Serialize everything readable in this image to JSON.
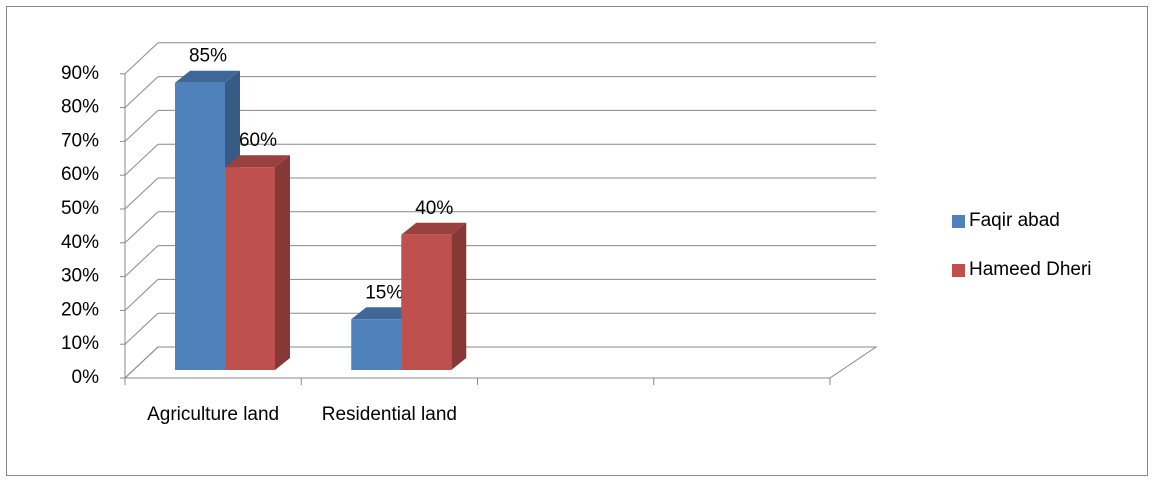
{
  "chart_data": {
    "type": "bar3d",
    "categories": [
      "Agriculture land",
      "Residential land",
      null,
      null
    ],
    "series": [
      {
        "name": "Faqir abad",
        "color": "#4f81bd",
        "values": [
          85,
          15,
          null,
          null
        ],
        "value_labels": [
          "85%",
          "15%",
          null,
          null
        ]
      },
      {
        "name": "Hameed Dheri",
        "color": "#c0504d",
        "values": [
          60,
          40,
          null,
          null
        ],
        "value_labels": [
          "60%",
          "40%",
          null,
          null
        ]
      }
    ],
    "ylim": [
      0,
      90
    ],
    "yticks": [
      {
        "value": 0,
        "label": "0%"
      },
      {
        "value": 10,
        "label": "10%"
      },
      {
        "value": 20,
        "label": "20%"
      },
      {
        "value": 30,
        "label": "30%"
      },
      {
        "value": 40,
        "label": "40%"
      },
      {
        "value": 50,
        "label": "50%"
      },
      {
        "value": 60,
        "label": "60%"
      },
      {
        "value": 70,
        "label": "70%"
      },
      {
        "value": 80,
        "label": "80%"
      },
      {
        "value": 90,
        "label": "90%"
      }
    ],
    "grid": true,
    "legend": "right"
  }
}
